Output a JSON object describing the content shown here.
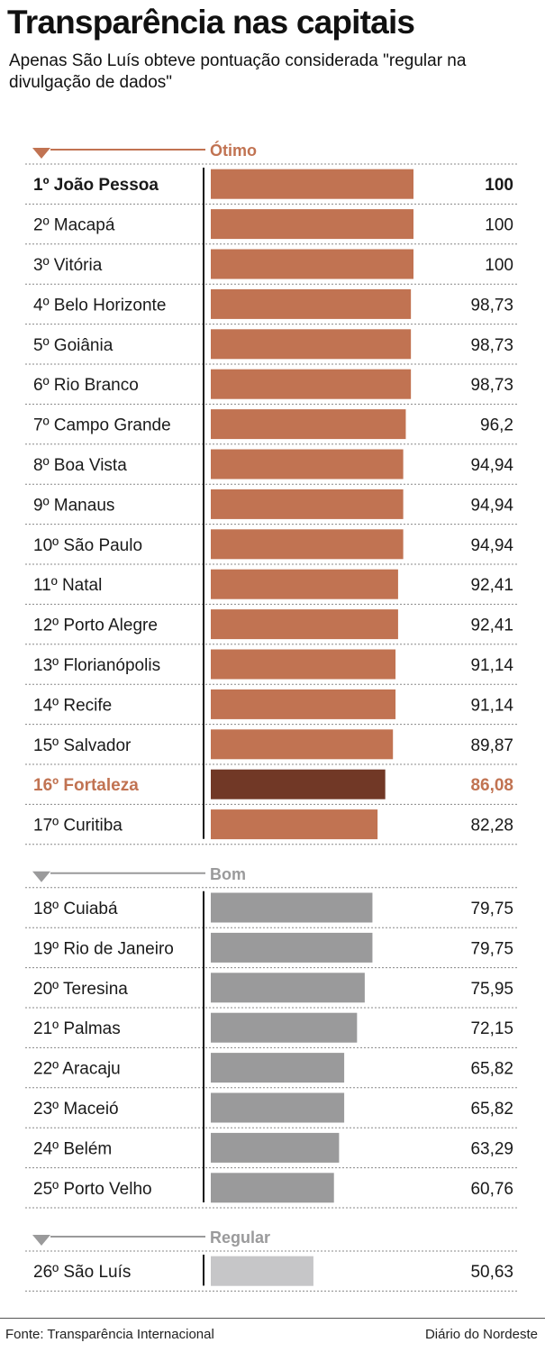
{
  "header": {
    "title": "Transparência nas capitais",
    "subtitle": "Apenas São Luís obteve pontuação considerada \"regular na divulgação de dados\""
  },
  "footer": {
    "source": "Fonte: Transparência Internacional",
    "brand": "Diário do Nordeste"
  },
  "colors": {
    "otimo": "#c17352",
    "highlight": "#713826",
    "bom": "#9a9a9b",
    "regular": "#c6c6c8",
    "highlight_text": "#c17352",
    "group_label_gray": "#9a9a9b"
  },
  "chart_data": {
    "type": "bar",
    "orientation": "horizontal",
    "xlim": [
      0,
      100
    ],
    "groups": [
      {
        "label": "Ótimo",
        "color": "#c17352",
        "items": [
          {
            "rank": "1º",
            "name": "João Pessoa",
            "value": 100,
            "value_label": "100",
            "bold": true
          },
          {
            "rank": "2º",
            "name": "Macapá",
            "value": 100,
            "value_label": "100"
          },
          {
            "rank": "3º",
            "name": "Vitória",
            "value": 100,
            "value_label": "100"
          },
          {
            "rank": "4º",
            "name": "Belo Horizonte",
            "value": 98.73,
            "value_label": "98,73"
          },
          {
            "rank": "5º",
            "name": "Goiânia",
            "value": 98.73,
            "value_label": "98,73"
          },
          {
            "rank": "6º",
            "name": "Rio Branco",
            "value": 98.73,
            "value_label": "98,73"
          },
          {
            "rank": "7º",
            "name": "Campo Grande",
            "value": 96.2,
            "value_label": "96,2"
          },
          {
            "rank": "8º",
            "name": "Boa Vista",
            "value": 94.94,
            "value_label": "94,94"
          },
          {
            "rank": "9º",
            "name": "Manaus",
            "value": 94.94,
            "value_label": "94,94"
          },
          {
            "rank": "10º",
            "name": "São Paulo",
            "value": 94.94,
            "value_label": "94,94"
          },
          {
            "rank": "11º",
            "name": "Natal",
            "value": 92.41,
            "value_label": "92,41"
          },
          {
            "rank": "12º",
            "name": "Porto Alegre",
            "value": 92.41,
            "value_label": "92,41"
          },
          {
            "rank": "13º",
            "name": "Florianópolis",
            "value": 91.14,
            "value_label": "91,14"
          },
          {
            "rank": "14º",
            "name": "Recife",
            "value": 91.14,
            "value_label": "91,14"
          },
          {
            "rank": "15º",
            "name": "Salvador",
            "value": 89.87,
            "value_label": "89,87"
          },
          {
            "rank": "16º",
            "name": "Fortaleza",
            "value": 86.08,
            "value_label": "86,08",
            "highlight": true
          },
          {
            "rank": "17º",
            "name": "Curitiba",
            "value": 82.28,
            "value_label": "82,28"
          }
        ]
      },
      {
        "label": "Bom",
        "color": "#9a9a9b",
        "items": [
          {
            "rank": "18º",
            "name": "Cuiabá",
            "value": 79.75,
            "value_label": "79,75"
          },
          {
            "rank": "19º",
            "name": "Rio de Janeiro",
            "value": 79.75,
            "value_label": "79,75"
          },
          {
            "rank": "20º",
            "name": "Teresina",
            "value": 75.95,
            "value_label": "75,95"
          },
          {
            "rank": "21º",
            "name": "Palmas",
            "value": 72.15,
            "value_label": "72,15"
          },
          {
            "rank": "22º",
            "name": "Aracaju",
            "value": 65.82,
            "value_label": "65,82"
          },
          {
            "rank": "23º",
            "name": "Maceió",
            "value": 65.82,
            "value_label": "65,82"
          },
          {
            "rank": "24º",
            "name": "Belém",
            "value": 63.29,
            "value_label": "63,29"
          },
          {
            "rank": "25º",
            "name": "Porto Velho",
            "value": 60.76,
            "value_label": "60,76"
          }
        ]
      },
      {
        "label": "Regular",
        "color": "#c6c6c8",
        "items": [
          {
            "rank": "26º",
            "name": "São Luís",
            "value": 50.63,
            "value_label": "50,63"
          }
        ]
      }
    ]
  }
}
